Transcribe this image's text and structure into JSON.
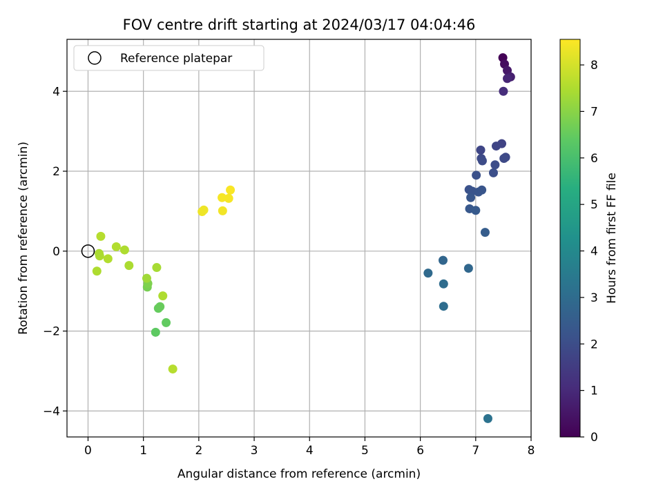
{
  "chart_data": {
    "type": "scatter",
    "title": "FOV centre drift starting at 2024/03/17 04:04:46",
    "xlabel": "Angular distance from reference (arcmin)",
    "ylabel": "Rotation from reference (arcmin)",
    "xlim": [
      -0.38,
      8.0
    ],
    "ylim": [
      -4.65,
      5.3
    ],
    "xticks": [
      0,
      1,
      2,
      3,
      4,
      5,
      6,
      7,
      8
    ],
    "yticks": [
      -4,
      -2,
      0,
      2,
      4
    ],
    "xtick_labels": [
      "0",
      "1",
      "2",
      "3",
      "4",
      "5",
      "6",
      "7",
      "8"
    ],
    "ytick_labels": [
      "−4",
      "−2",
      "0",
      "2",
      "4"
    ],
    "grid": true,
    "legend": {
      "position": "top-left",
      "entries": [
        "Reference platepar"
      ]
    },
    "reference_point": {
      "x": 0,
      "y": 0
    },
    "colorbar": {
      "label": "Hours from first FF file",
      "colormap": "viridis",
      "range": [
        0,
        8.55
      ],
      "ticks": [
        0,
        1,
        2,
        3,
        4,
        5,
        6,
        7,
        8
      ],
      "tick_labels": [
        "0",
        "1",
        "2",
        "3",
        "4",
        "5",
        "6",
        "7",
        "8"
      ]
    },
    "points": [
      {
        "x": 7.49,
        "y": 4.84,
        "h": 0.05
      },
      {
        "x": 7.52,
        "y": 4.68,
        "h": 0.3
      },
      {
        "x": 7.57,
        "y": 4.52,
        "h": 0.55
      },
      {
        "x": 7.63,
        "y": 4.36,
        "h": 0.75
      },
      {
        "x": 7.57,
        "y": 4.32,
        "h": 0.9
      },
      {
        "x": 7.5,
        "y": 4.0,
        "h": 1.1
      },
      {
        "x": 7.47,
        "y": 2.69,
        "h": 1.7
      },
      {
        "x": 7.37,
        "y": 2.63,
        "h": 1.75
      },
      {
        "x": 7.09,
        "y": 2.53,
        "h": 1.8
      },
      {
        "x": 7.54,
        "y": 2.35,
        "h": 1.85
      },
      {
        "x": 7.51,
        "y": 2.32,
        "h": 1.9
      },
      {
        "x": 7.1,
        "y": 2.32,
        "h": 1.9
      },
      {
        "x": 7.12,
        "y": 2.26,
        "h": 1.95
      },
      {
        "x": 7.35,
        "y": 2.16,
        "h": 2.0
      },
      {
        "x": 7.32,
        "y": 1.96,
        "h": 2.05
      },
      {
        "x": 7.01,
        "y": 1.9,
        "h": 2.1
      },
      {
        "x": 6.88,
        "y": 1.54,
        "h": 2.15
      },
      {
        "x": 6.94,
        "y": 1.5,
        "h": 2.2
      },
      {
        "x": 7.05,
        "y": 1.48,
        "h": 2.25
      },
      {
        "x": 7.11,
        "y": 1.53,
        "h": 2.25
      },
      {
        "x": 6.91,
        "y": 1.34,
        "h": 2.3
      },
      {
        "x": 6.89,
        "y": 1.06,
        "h": 2.35
      },
      {
        "x": 7.0,
        "y": 1.02,
        "h": 2.4
      },
      {
        "x": 7.17,
        "y": 0.47,
        "h": 2.5
      },
      {
        "x": 6.41,
        "y": -0.23,
        "h": 2.8
      },
      {
        "x": 6.87,
        "y": -0.43,
        "h": 2.85
      },
      {
        "x": 6.14,
        "y": -0.55,
        "h": 2.95
      },
      {
        "x": 6.42,
        "y": -0.82,
        "h": 3.0
      },
      {
        "x": 6.42,
        "y": -1.38,
        "h": 3.05
      },
      {
        "x": 7.22,
        "y": -4.19,
        "h": 3.2
      },
      {
        "x": 1.53,
        "y": -2.95,
        "h": 7.6
      },
      {
        "x": 1.22,
        "y": -2.03,
        "h": 6.4
      },
      {
        "x": 1.41,
        "y": -1.79,
        "h": 6.45
      },
      {
        "x": 1.27,
        "y": -1.43,
        "h": 6.5
      },
      {
        "x": 1.3,
        "y": -1.39,
        "h": 6.55
      },
      {
        "x": 1.35,
        "y": -1.12,
        "h": 7.5
      },
      {
        "x": 1.07,
        "y": -0.9,
        "h": 6.75
      },
      {
        "x": 1.08,
        "y": -0.81,
        "h": 6.85
      },
      {
        "x": 1.06,
        "y": -0.68,
        "h": 7.3
      },
      {
        "x": 1.24,
        "y": -0.41,
        "h": 7.4
      },
      {
        "x": 0.74,
        "y": -0.36,
        "h": 7.45
      },
      {
        "x": 0.16,
        "y": -0.5,
        "h": 7.5
      },
      {
        "x": 0.36,
        "y": -0.19,
        "h": 7.55
      },
      {
        "x": 0.21,
        "y": -0.12,
        "h": 7.5
      },
      {
        "x": 0.2,
        "y": -0.06,
        "h": 7.45
      },
      {
        "x": 0.66,
        "y": 0.03,
        "h": 7.5
      },
      {
        "x": 0.51,
        "y": 0.11,
        "h": 7.55
      },
      {
        "x": 0.23,
        "y": 0.37,
        "h": 7.6
      },
      {
        "x": 2.06,
        "y": 0.99,
        "h": 8.35
      },
      {
        "x": 2.09,
        "y": 1.03,
        "h": 8.35
      },
      {
        "x": 2.43,
        "y": 1.01,
        "h": 8.4
      },
      {
        "x": 2.42,
        "y": 1.34,
        "h": 8.45
      },
      {
        "x": 2.54,
        "y": 1.32,
        "h": 8.45
      },
      {
        "x": 2.57,
        "y": 1.53,
        "h": 8.5
      }
    ]
  }
}
